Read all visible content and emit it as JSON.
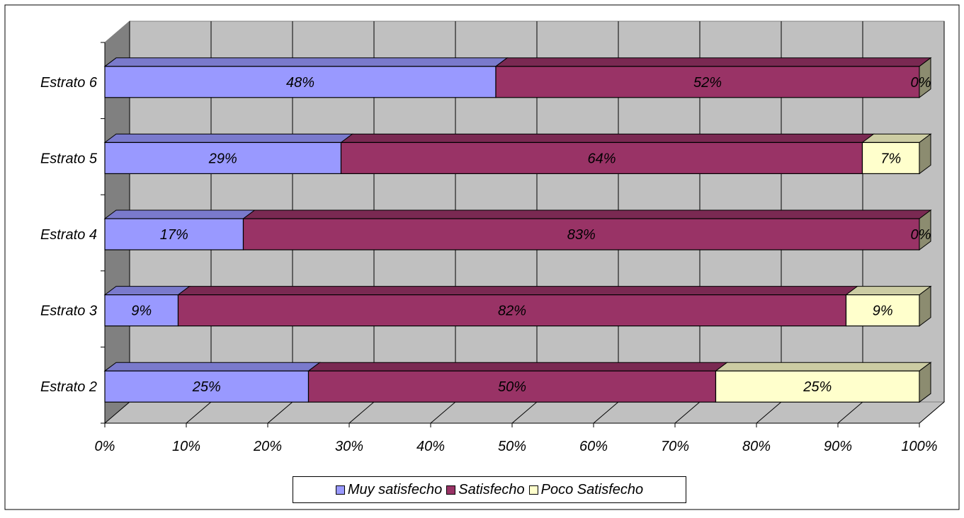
{
  "chart_data": {
    "type": "bar",
    "orientation": "horizontal",
    "stacked": "percent",
    "three_d": true,
    "categories": [
      "Estrato 2",
      "Estrato 3",
      "Estrato 4",
      "Estrato 5",
      "Estrato 6"
    ],
    "series": [
      {
        "name": "Muy satisfecho",
        "color": "#9999ff",
        "values": [
          25,
          9,
          17,
          29,
          48
        ]
      },
      {
        "name": "Satisfecho",
        "color": "#993366",
        "values": [
          50,
          82,
          83,
          64,
          52
        ]
      },
      {
        "name": "Poco Satisfecho",
        "color": "#ffffcc",
        "values": [
          25,
          9,
          0,
          7,
          0
        ]
      }
    ],
    "data_labels": [
      [
        "25%",
        "50%",
        "25%"
      ],
      [
        "9%",
        "82%",
        "9%"
      ],
      [
        "17%",
        "83%",
        "0%"
      ],
      [
        "29%",
        "64%",
        "7%"
      ],
      [
        "48%",
        "52%",
        "0%"
      ]
    ],
    "x_ticks": [
      "0%",
      "10%",
      "20%",
      "30%",
      "40%",
      "50%",
      "60%",
      "70%",
      "80%",
      "90%",
      "100%"
    ],
    "xlim": [
      0,
      100
    ],
    "grid": true,
    "legend_position": "bottom",
    "title": "",
    "xlabel": "",
    "ylabel": ""
  }
}
